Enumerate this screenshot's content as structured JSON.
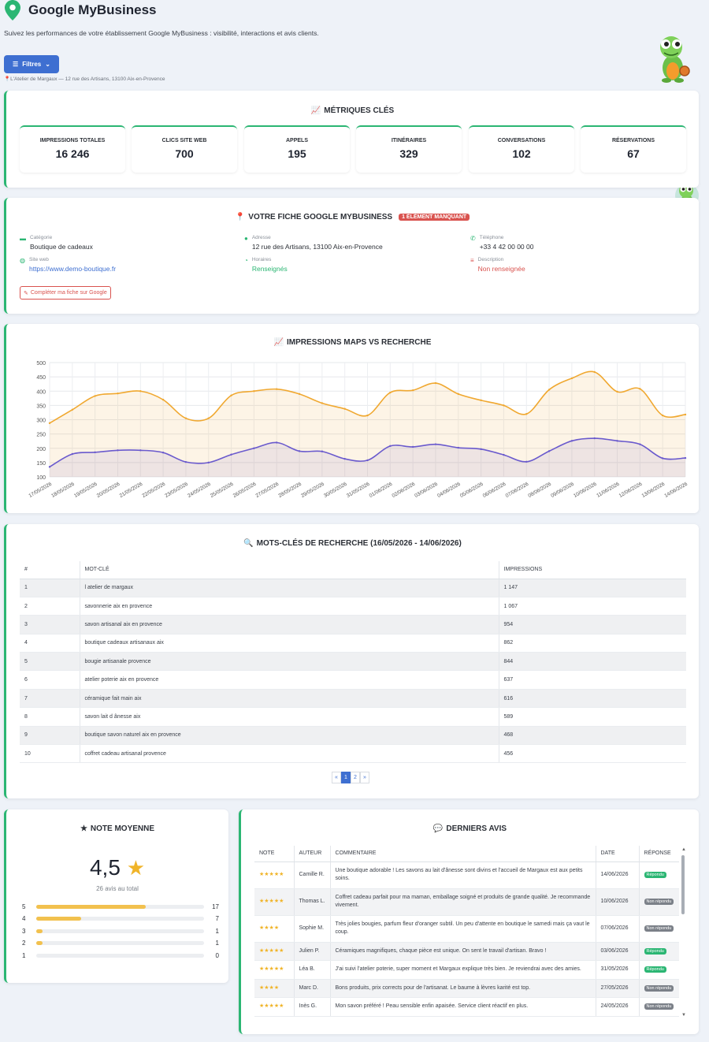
{
  "header": {
    "app_title": "Google MyBusiness",
    "subtitle": "Suivez les performances de votre établissement Google MyBusiness : visibilité, interactions et avis clients.",
    "filters_label": "Filtres",
    "location": "L'Atelier de Margaux — 12 rue des Artisans, 13100 Aix-en-Provence"
  },
  "metrics": {
    "title": "MÉTRIQUES CLÉS",
    "items": [
      {
        "label": "IMPRESSIONS TOTALES",
        "value": "16 246"
      },
      {
        "label": "CLICS SITE WEB",
        "value": "700"
      },
      {
        "label": "APPELS",
        "value": "195"
      },
      {
        "label": "ITINÉRAIRES",
        "value": "329"
      },
      {
        "label": "CONVERSATIONS",
        "value": "102"
      },
      {
        "label": "RÉSERVATIONS",
        "value": "67"
      }
    ]
  },
  "profile": {
    "title": "VOTRE FICHE GOOGLE MYBUSINESS",
    "badge": "1 ÉLÉMENT MANQUANT",
    "fields": [
      {
        "label": "Catégorie",
        "value": "Boutique de cadeaux",
        "icon": "store-icon",
        "color": "#2bb673"
      },
      {
        "label": "Adresse",
        "value": "12 rue des Artisans, 13100 Aix-en-Provence",
        "icon": "map-pin-icon",
        "color": "#2bb673"
      },
      {
        "label": "Téléphone",
        "value": "+33 4 42 00 00 00",
        "icon": "phone-icon",
        "color": "#2bb673"
      },
      {
        "label": "Site web",
        "value": "https://www.demo-boutique.fr",
        "icon": "globe-icon",
        "color": "#2bb673"
      },
      {
        "label": "Horaires",
        "value": "Renseignés",
        "icon": "clock-icon",
        "color": "#2bb673"
      },
      {
        "label": "Description",
        "value": "Non renseignée",
        "icon": "align-left-icon",
        "color": "#d9534f"
      }
    ],
    "complete_button": "Compléter ma fiche sur Google"
  },
  "chart": {
    "title": "IMPRESSIONS MAPS VS RECHERCHE"
  },
  "chart_data": {
    "type": "line",
    "title": "IMPRESSIONS MAPS VS RECHERCHE",
    "xlabel": "",
    "ylabel": "",
    "ylim": [
      100,
      500
    ],
    "yticks": [
      100,
      150,
      200,
      250,
      300,
      350,
      400,
      450,
      500
    ],
    "grid": true,
    "x": [
      "17/05/2026",
      "18/05/2026",
      "19/05/2026",
      "20/05/2026",
      "21/05/2026",
      "22/05/2026",
      "23/05/2026",
      "24/05/2026",
      "25/05/2026",
      "26/05/2026",
      "27/05/2026",
      "28/05/2026",
      "29/05/2026",
      "30/05/2026",
      "31/05/2026",
      "01/06/2026",
      "02/06/2026",
      "03/06/2026",
      "04/06/2026",
      "05/06/2026",
      "06/06/2026",
      "07/06/2026",
      "08/06/2026",
      "09/06/2026",
      "10/06/2026",
      "11/06/2026",
      "12/06/2026",
      "13/06/2026",
      "14/06/2026"
    ],
    "series": [
      {
        "color": "#f0a830",
        "values": [
          288,
          335,
          383,
          392,
          400,
          370,
          305,
          305,
          385,
          400,
          407,
          390,
          358,
          338,
          315,
          395,
          403,
          428,
          390,
          368,
          350,
          320,
          405,
          445,
          467,
          398,
          408,
          315,
          318
        ]
      },
      {
        "color": "#6a5acd",
        "values": [
          135,
          180,
          186,
          193,
          193,
          185,
          152,
          150,
          178,
          200,
          220,
          190,
          189,
          163,
          158,
          208,
          205,
          214,
          202,
          197,
          177,
          153,
          190,
          226,
          235,
          226,
          214,
          165,
          166
        ]
      }
    ]
  },
  "keywords": {
    "title": "MOTS-CLÉS DE RECHERCHE (16/05/2026 - 14/06/2026)",
    "columns": [
      "#",
      "MOT-CLÉ",
      "IMPRESSIONS"
    ],
    "rows": [
      [
        "1",
        "l atelier de margaux",
        "1 147"
      ],
      [
        "2",
        "savonnerie aix en provence",
        "1 067"
      ],
      [
        "3",
        "savon artisanal aix en provence",
        "954"
      ],
      [
        "4",
        "boutique cadeaux artisanaux aix",
        "862"
      ],
      [
        "5",
        "bougie artisanale provence",
        "844"
      ],
      [
        "6",
        "atelier poterie aix en provence",
        "637"
      ],
      [
        "7",
        "céramique fait main aix",
        "616"
      ],
      [
        "8",
        "savon lait d ânesse aix",
        "589"
      ],
      [
        "9",
        "boutique savon naturel aix en provence",
        "468"
      ],
      [
        "10",
        "coffret cadeau artisanal provence",
        "456"
      ]
    ],
    "pager": [
      "«",
      "1",
      "2",
      "»"
    ]
  },
  "rating": {
    "title": "NOTE MOYENNE",
    "value": "4,5",
    "total": "26 avis au total",
    "distribution": [
      {
        "star": "5",
        "count": "17",
        "fraction": 0.654
      },
      {
        "star": "4",
        "count": "7",
        "fraction": 0.269
      },
      {
        "star": "3",
        "count": "1",
        "fraction": 0.038
      },
      {
        "star": "2",
        "count": "1",
        "fraction": 0.038
      },
      {
        "star": "1",
        "count": "0",
        "fraction": 0
      }
    ]
  },
  "reviews": {
    "title": "DERNIERS AVIS",
    "columns": [
      "NOTE",
      "AUTEUR",
      "COMMENTAIRE",
      "DATE",
      "RÉPONSE"
    ],
    "rows": [
      {
        "stars": 5,
        "author": "Camille R.",
        "comment": "Une boutique adorable ! Les savons au lait d'ânesse sont divins et l'accueil de Margaux est aux petits soins.",
        "date": "14/06/2026",
        "reply": "Répondu",
        "replied": true
      },
      {
        "stars": 5,
        "author": "Thomas L.",
        "comment": "Coffret cadeau parfait pour ma maman, emballage soigné et produits de grande qualité. Je recommande vivement.",
        "date": "10/06/2026",
        "reply": "Non répondu",
        "replied": false
      },
      {
        "stars": 4,
        "author": "Sophie M.",
        "comment": "Très jolies bougies, parfum fleur d'oranger subtil. Un peu d'attente en boutique le samedi mais ça vaut le coup.",
        "date": "07/06/2026",
        "reply": "Non répondu",
        "replied": false
      },
      {
        "stars": 5,
        "author": "Julien P.",
        "comment": "Céramiques magnifiques, chaque pièce est unique. On sent le travail d'artisan. Bravo !",
        "date": "03/06/2026",
        "reply": "Répondu",
        "replied": true
      },
      {
        "stars": 5,
        "author": "Léa B.",
        "comment": "J'ai suivi l'atelier poterie, super moment et Margaux explique très bien. Je reviendrai avec des amies.",
        "date": "31/05/2026",
        "reply": "Répondu",
        "replied": true
      },
      {
        "stars": 4,
        "author": "Marc D.",
        "comment": "Bons produits, prix corrects pour de l'artisanat. Le baume à lèvres karité est top.",
        "date": "27/05/2026",
        "reply": "Non répondu",
        "replied": false
      },
      {
        "stars": 5,
        "author": "Inès G.",
        "comment": "Mon savon préféré ! Peau sensible enfin apaisée. Service client réactif en plus.",
        "date": "24/05/2026",
        "reply": "Non répondu",
        "replied": false
      }
    ]
  }
}
